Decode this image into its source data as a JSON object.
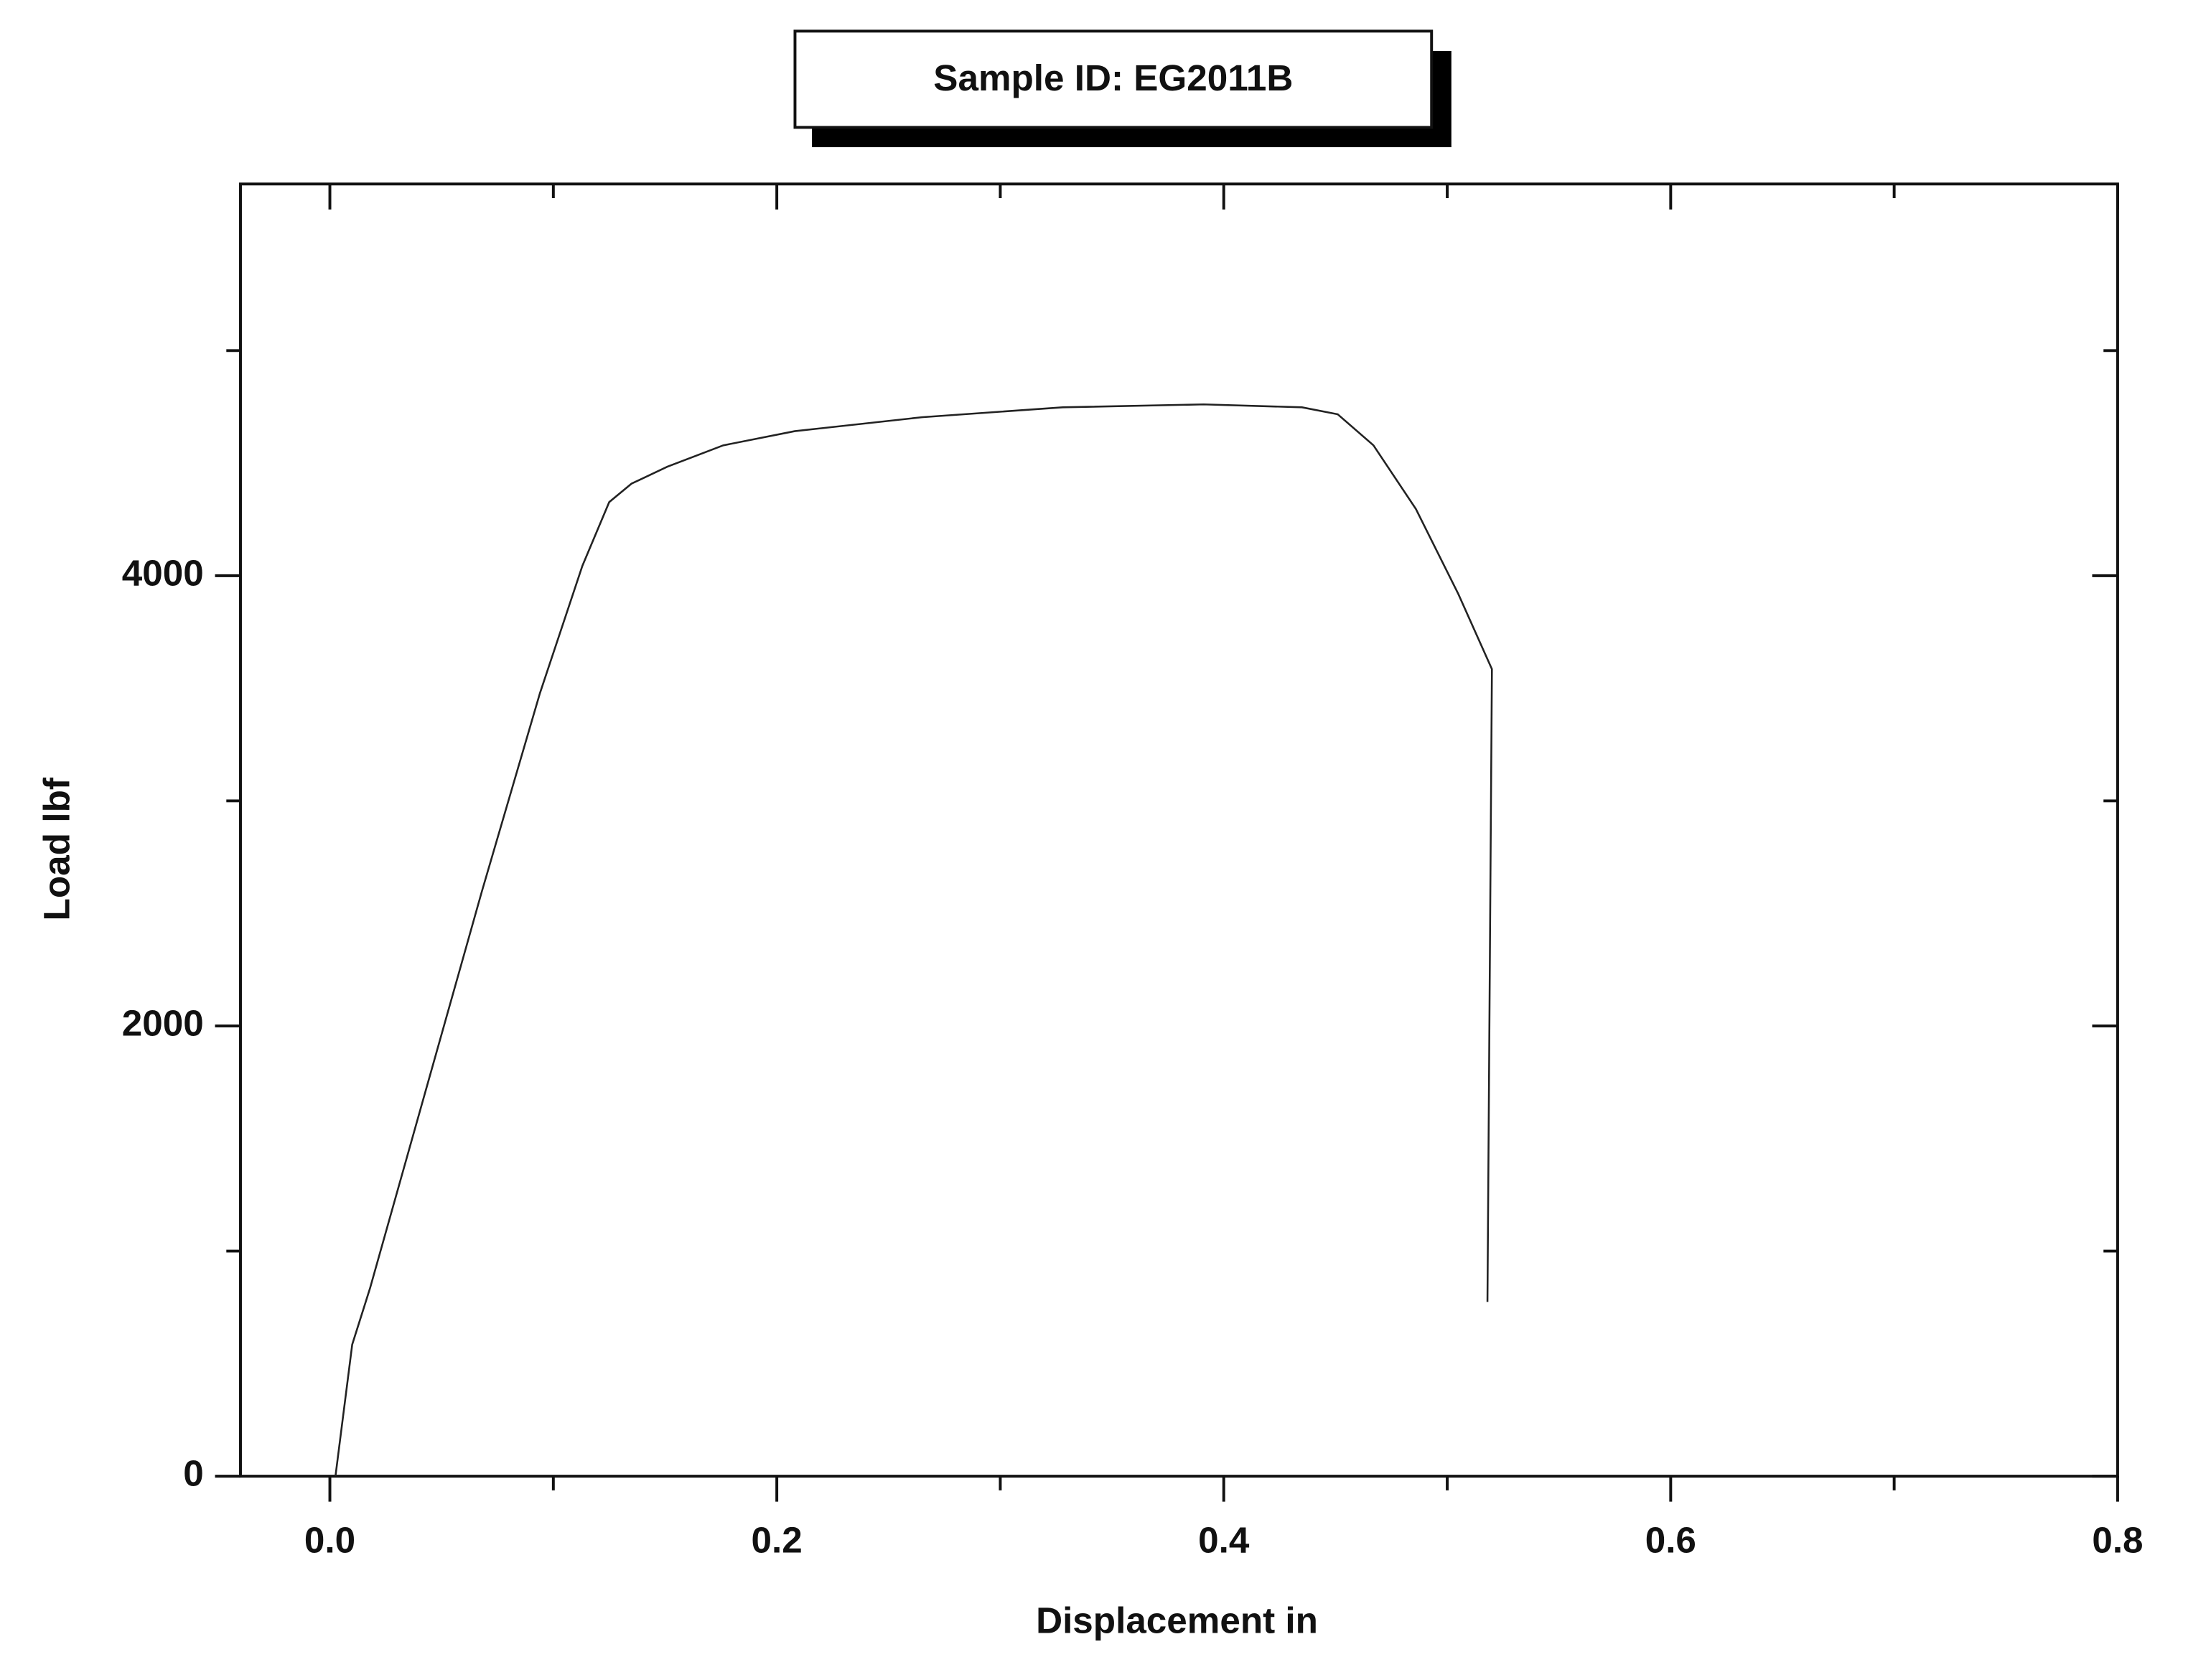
{
  "chart_data": {
    "type": "line",
    "title": "Sample ID: EG2011B",
    "x_label": "Displacement in",
    "y_label": "Load lbf",
    "series": [
      {
        "color": "#222222",
        "x": [
          0.0025,
          0.01,
          0.018,
          0.043,
          0.068,
          0.094,
          0.113,
          0.125,
          0.135,
          0.151,
          0.176,
          0.208,
          0.265,
          0.328,
          0.391,
          0.435,
          0.451,
          0.467,
          0.486,
          0.505,
          0.52,
          0.518
        ],
        "values": [
          0,
          585,
          836,
          1717,
          2597,
          3478,
          4044,
          4327,
          4409,
          4484,
          4579,
          4642,
          4704,
          4748,
          4761,
          4748,
          4717,
          4579,
          4296,
          3918,
          3585,
          774
        ]
      }
    ],
    "xlim": [
      -0.04,
      0.8
    ],
    "ylim": [
      0,
      5740
    ],
    "xticks": [
      {
        "value": 0,
        "label": "0.0"
      },
      0.2,
      0.4,
      0.6,
      0.8
    ],
    "xminorticks": [
      0.1,
      0.3,
      0.5,
      0.7
    ],
    "yticks": [
      0,
      2000,
      4000
    ],
    "yminorticks": [
      1000,
      3000,
      5000
    ],
    "grid": false
  }
}
